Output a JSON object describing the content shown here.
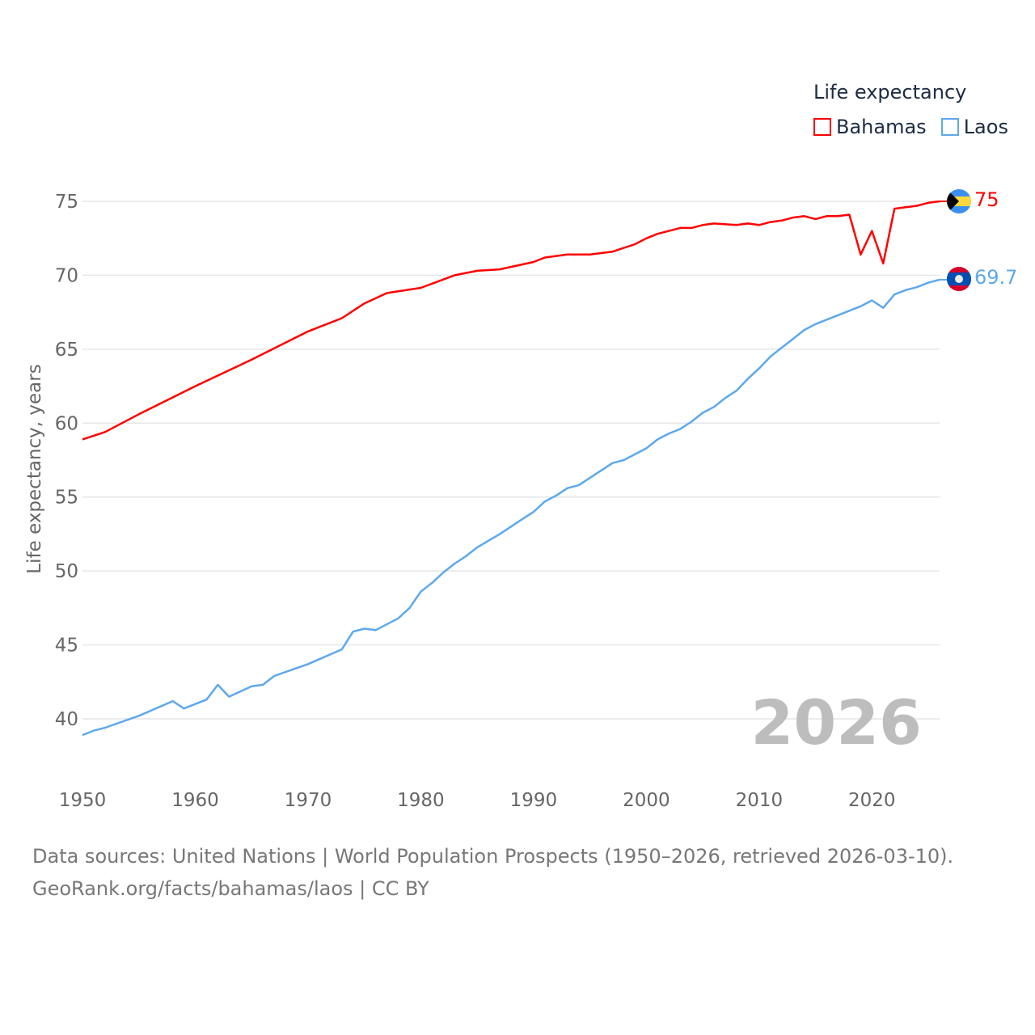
{
  "chart_data": {
    "type": "line",
    "title": "Life expectancy",
    "xlabel": "",
    "ylabel": "Life expectancy, years",
    "xlim": [
      1950,
      2026
    ],
    "ylim": [
      38,
      77
    ],
    "xticks": [
      1950,
      1960,
      1970,
      1980,
      1990,
      2000,
      2010,
      2020
    ],
    "yticks": [
      40,
      45,
      50,
      55,
      60,
      65,
      70,
      75
    ],
    "grid": true,
    "legend_position": "top-right",
    "year_watermark": "2026",
    "series": [
      {
        "name": "Bahamas",
        "color": "#ff0000",
        "end_label": "75",
        "x": [
          1950,
          1952,
          1955,
          1960,
          1965,
          1970,
          1973,
          1975,
          1977,
          1980,
          1983,
          1985,
          1987,
          1990,
          1991,
          1993,
          1995,
          1997,
          1999,
          2000,
          2001,
          2003,
          2004,
          2005,
          2006,
          2008,
          2009,
          2010,
          2011,
          2012,
          2013,
          2014,
          2015,
          2016,
          2017,
          2018,
          2019,
          2020,
          2021,
          2022,
          2023,
          2024,
          2025,
          2026
        ],
        "values": [
          58.9,
          59.4,
          60.6,
          62.5,
          64.3,
          66.2,
          67.1,
          68.1,
          68.8,
          69.15,
          70.0,
          70.3,
          70.4,
          70.9,
          71.2,
          71.4,
          71.4,
          71.6,
          72.1,
          72.5,
          72.8,
          73.2,
          73.2,
          73.4,
          73.5,
          73.4,
          73.5,
          73.4,
          73.6,
          73.7,
          73.9,
          74.0,
          73.8,
          74.0,
          74.0,
          74.1,
          71.4,
          73.0,
          70.8,
          74.5,
          74.6,
          74.7,
          74.9,
          75.0
        ]
      },
      {
        "name": "Laos",
        "color": "#5ea8ec",
        "end_label": "69.7",
        "x": [
          1950,
          1951,
          1952,
          1955,
          1958,
          1959,
          1961,
          1962,
          1963,
          1965,
          1966,
          1967,
          1970,
          1973,
          1974,
          1975,
          1976,
          1978,
          1979,
          1980,
          1981,
          1982,
          1983,
          1984,
          1985,
          1987,
          1989,
          1990,
          1991,
          1992,
          1993,
          1994,
          1995,
          1997,
          1998,
          2000,
          2001,
          2002,
          2003,
          2004,
          2005,
          2006,
          2007,
          2008,
          2009,
          2010,
          2011,
          2012,
          2013,
          2014,
          2015,
          2016,
          2017,
          2018,
          2019,
          2020,
          2021,
          2022,
          2023,
          2024,
          2025,
          2026
        ],
        "values": [
          38.9,
          39.2,
          39.4,
          40.2,
          41.2,
          40.7,
          41.3,
          42.3,
          41.5,
          42.2,
          42.3,
          42.9,
          43.7,
          44.7,
          45.9,
          46.1,
          46.0,
          46.8,
          47.5,
          48.6,
          49.2,
          49.9,
          50.5,
          51.0,
          51.6,
          52.5,
          53.5,
          54.0,
          54.7,
          55.1,
          55.6,
          55.8,
          56.3,
          57.3,
          57.5,
          58.3,
          58.9,
          59.3,
          59.6,
          60.1,
          60.7,
          61.1,
          61.7,
          62.2,
          63.0,
          63.7,
          64.5,
          65.1,
          65.7,
          66.3,
          66.7,
          67.0,
          67.3,
          67.6,
          67.9,
          68.3,
          67.8,
          68.7,
          69.0,
          69.2,
          69.5,
          69.7
        ]
      }
    ]
  },
  "footer": {
    "line1": "Data sources: United Nations | World Population Prospects (1950–2026, retrieved 2026-03-10).",
    "line2": "GeoRank.org/facts/bahamas/laos | CC BY"
  }
}
